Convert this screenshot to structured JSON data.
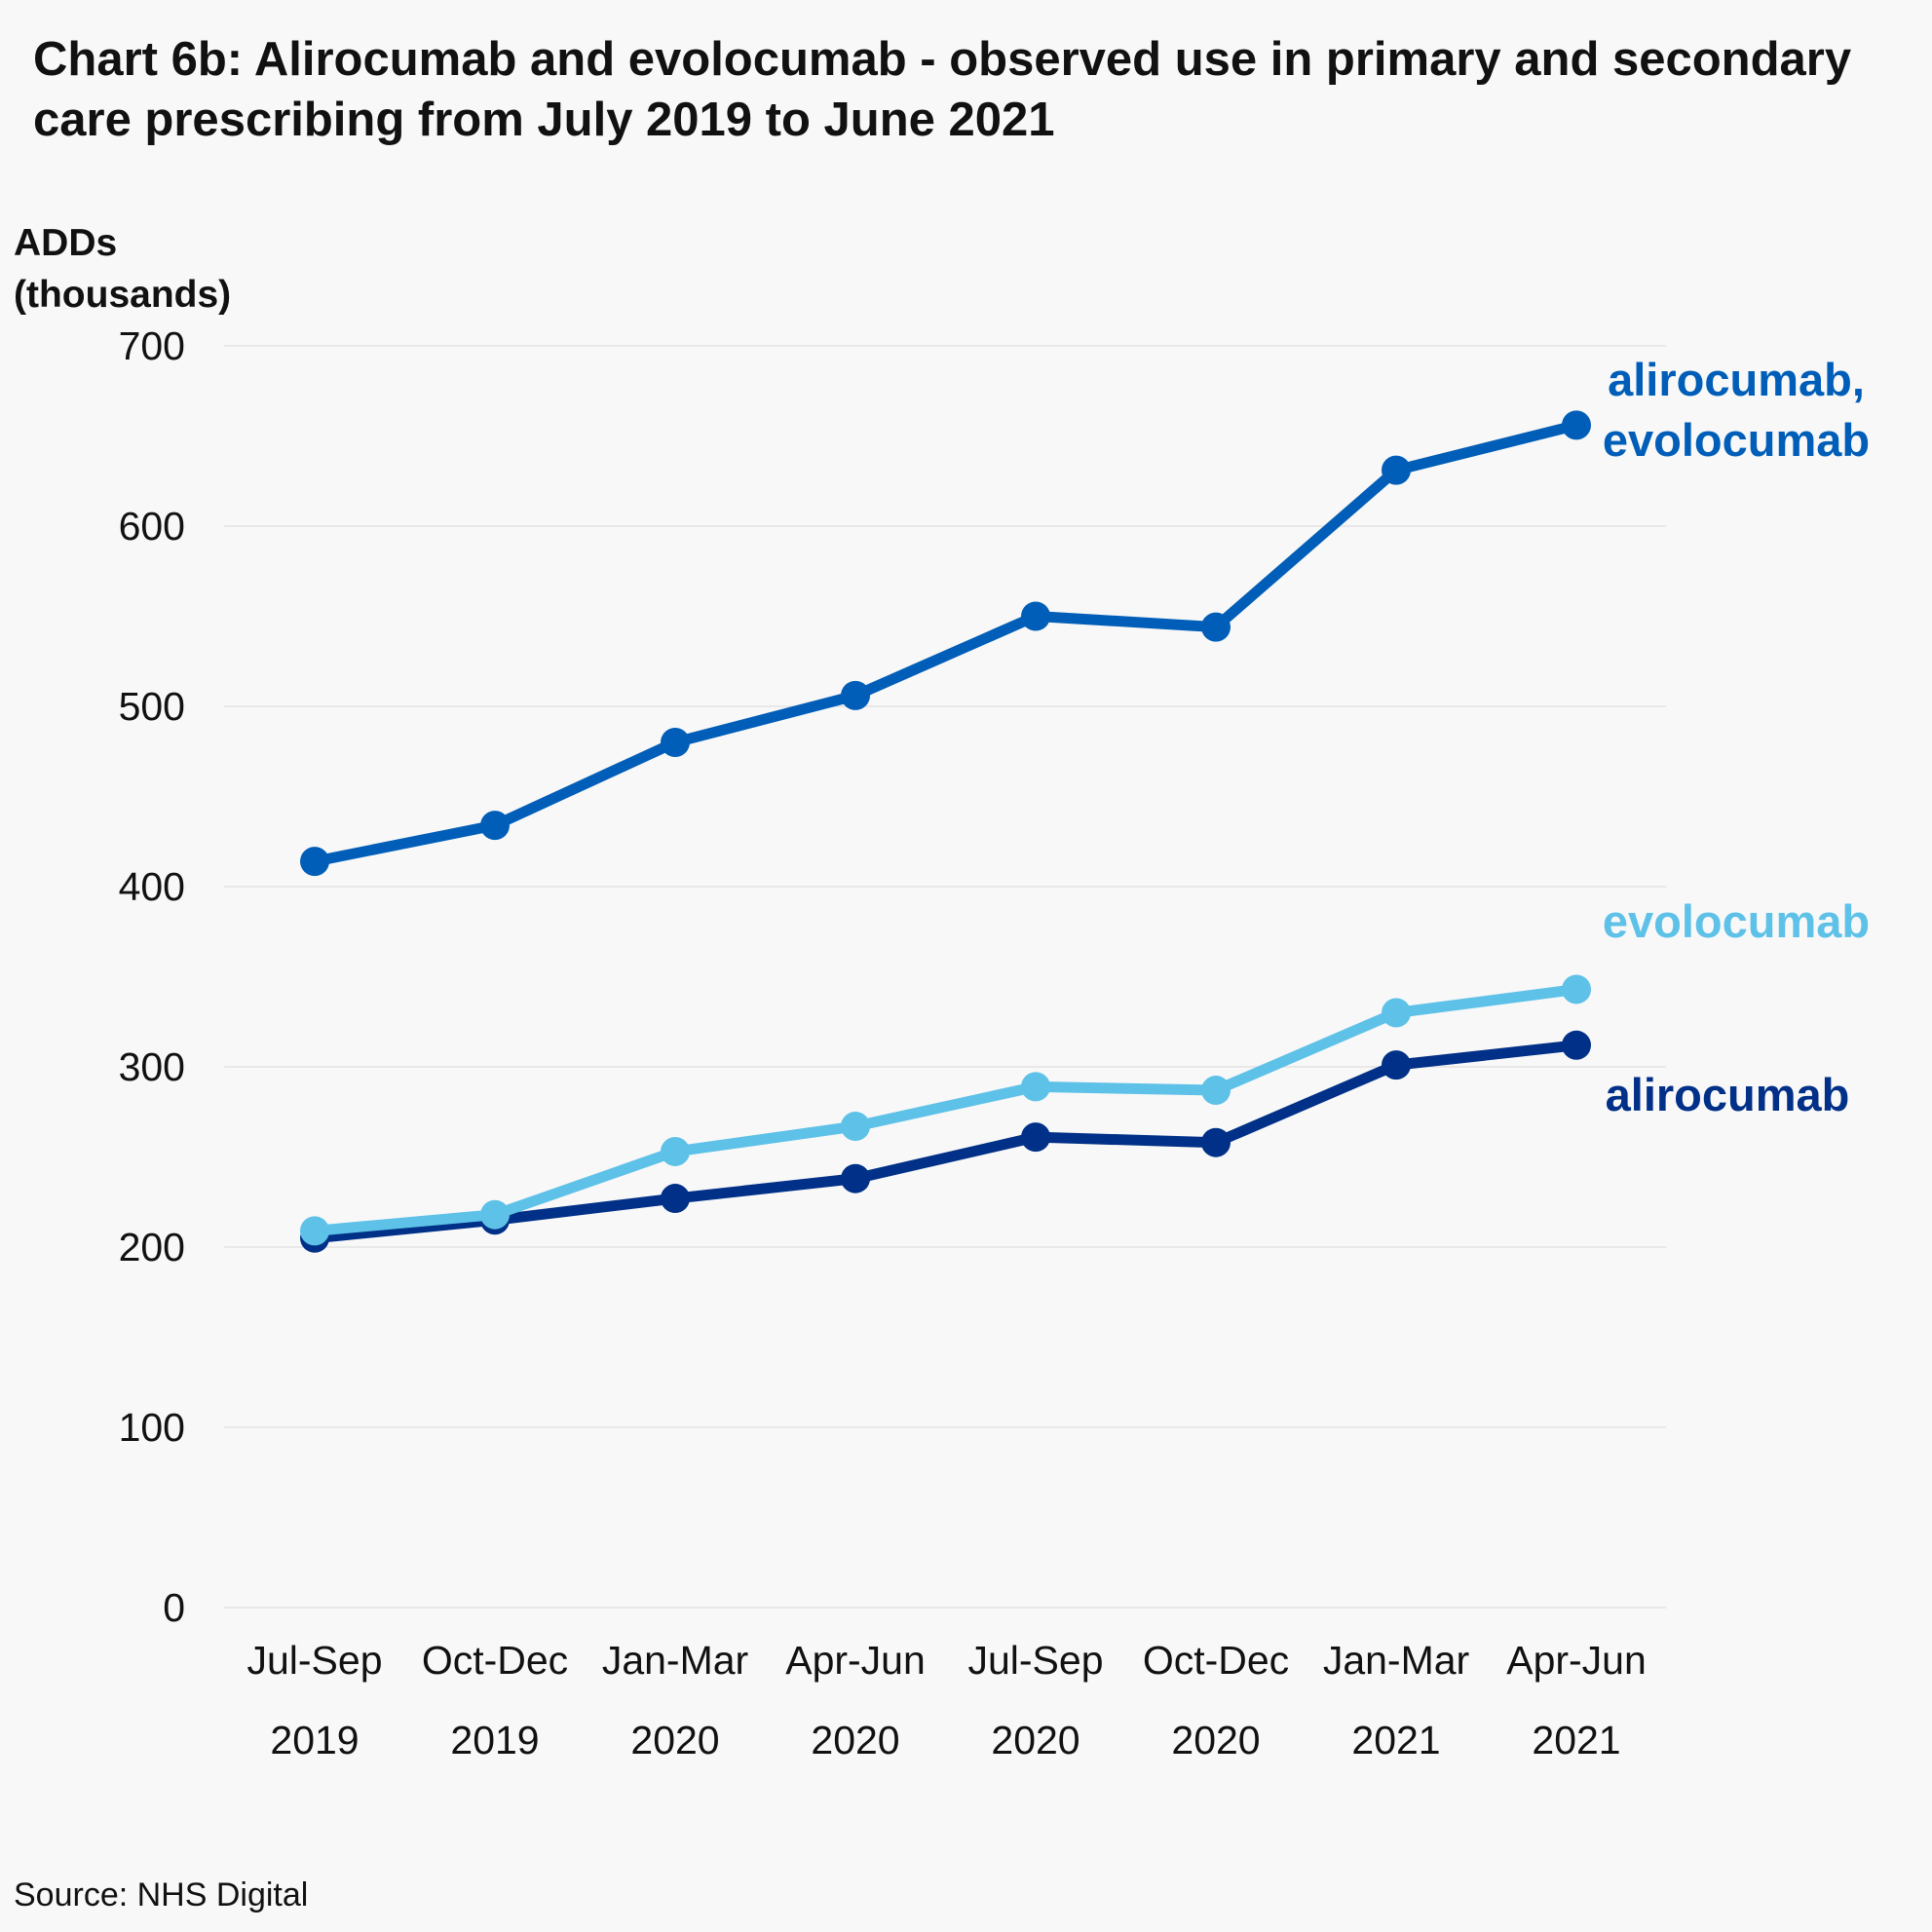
{
  "chart_data": {
    "type": "line",
    "title": "Chart 6b: Alirocumab and evolocumab - observed use in primary and secondary care prescribing from July 2019 to June 2021",
    "ylabel": [
      "ADDs",
      "(thousands)"
    ],
    "xlabel": "",
    "ylim": [
      0,
      700
    ],
    "yticks": [
      0,
      100,
      200,
      300,
      400,
      500,
      600,
      700
    ],
    "grid": true,
    "legend": "direct labels at line ends",
    "categories": [
      [
        "Jul-Sep",
        "2019"
      ],
      [
        "Oct-Dec",
        "2019"
      ],
      [
        "Jan-Mar",
        "2020"
      ],
      [
        "Apr-Jun",
        "2020"
      ],
      [
        "Jul-Sep",
        "2020"
      ],
      [
        "Oct-Dec",
        "2020"
      ],
      [
        "Jan-Mar",
        "2021"
      ],
      [
        "Apr-Jun",
        "2021"
      ]
    ],
    "series": [
      {
        "name": "alirocumab",
        "label_lines": [
          "alirocumab"
        ],
        "color": "#003087",
        "values": [
          205,
          215,
          227,
          238,
          261,
          258,
          301,
          312
        ]
      },
      {
        "name": "evolocumab",
        "label_lines": [
          "evolocumab"
        ],
        "color": "#5ec1e8",
        "values": [
          209,
          218,
          253,
          267,
          289,
          287,
          330,
          343
        ]
      },
      {
        "name": "alirocumab, evolocumab",
        "label_lines": [
          "alirocumab,",
          "evolocumab"
        ],
        "color": "#005eb8",
        "values": [
          414,
          434,
          480,
          506,
          550,
          544,
          631,
          656
        ]
      }
    ]
  },
  "source": "Source: NHS Digital"
}
